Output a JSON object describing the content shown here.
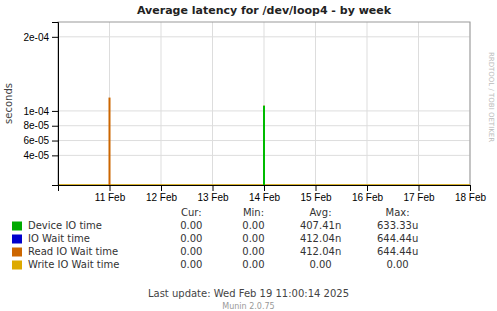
{
  "chart_data": {
    "type": "bar",
    "title": "Average latency for /dev/loop4 - by week",
    "ylabel": "seconds",
    "xlim": [
      0,
      8
    ],
    "xticks": [
      {
        "value": 1,
        "label": "11 Feb"
      },
      {
        "value": 2,
        "label": "12 Feb"
      },
      {
        "value": 3,
        "label": "13 Feb"
      },
      {
        "value": 4,
        "label": "14 Feb"
      },
      {
        "value": 5,
        "label": "15 Feb"
      },
      {
        "value": 6,
        "label": "16 Feb"
      },
      {
        "value": 7,
        "label": "17 Feb"
      },
      {
        "value": 8,
        "label": "18 Feb"
      }
    ],
    "ylim": [
      0,
      0.00022
    ],
    "yticks": [
      {
        "value": 4e-05,
        "label": "4e-05"
      },
      {
        "value": 6e-05,
        "label": "6e-05"
      },
      {
        "value": 8e-05,
        "label": "8e-05"
      },
      {
        "value": 0.0001,
        "label": "1e-04"
      },
      {
        "value": 0.0002,
        "label": "2e-04"
      }
    ],
    "grid": true,
    "spikes": [
      {
        "x": 1.0,
        "value": 0.000118,
        "color": "#cc6600"
      },
      {
        "x": 4.0,
        "value": 0.000107,
        "color": "#cc6600"
      },
      {
        "x": 4.0,
        "value": 0.000107,
        "color": "#00bb00"
      }
    ],
    "baseline": {
      "value": 0,
      "color": "#ddaa00"
    },
    "legend_items": [
      {
        "label": "Device IO time",
        "color": "#00aa00"
      },
      {
        "label": "IO Wait time",
        "color": "#0000cc"
      },
      {
        "label": "Read IO Wait time",
        "color": "#cc6600"
      },
      {
        "label": "Write IO Wait time",
        "color": "#ddaa00"
      }
    ],
    "table": {
      "headers": [
        "Cur:",
        "Min:",
        "Avg:",
        "Max:"
      ],
      "rows": [
        [
          "0.00",
          "0.00",
          "407.41n",
          "633.33u"
        ],
        [
          "0.00",
          "0.00",
          "412.04n",
          "644.44u"
        ],
        [
          "0.00",
          "0.00",
          "412.04n",
          "644.44u"
        ],
        [
          "0.00",
          "0.00",
          "0.00",
          "0.00"
        ]
      ]
    },
    "last_update": "Last update: Wed Feb 19 11:00:14 2025",
    "version": "Munin 2.0.75",
    "side_label": "RRDTOOL / TOBI OETIKER"
  }
}
